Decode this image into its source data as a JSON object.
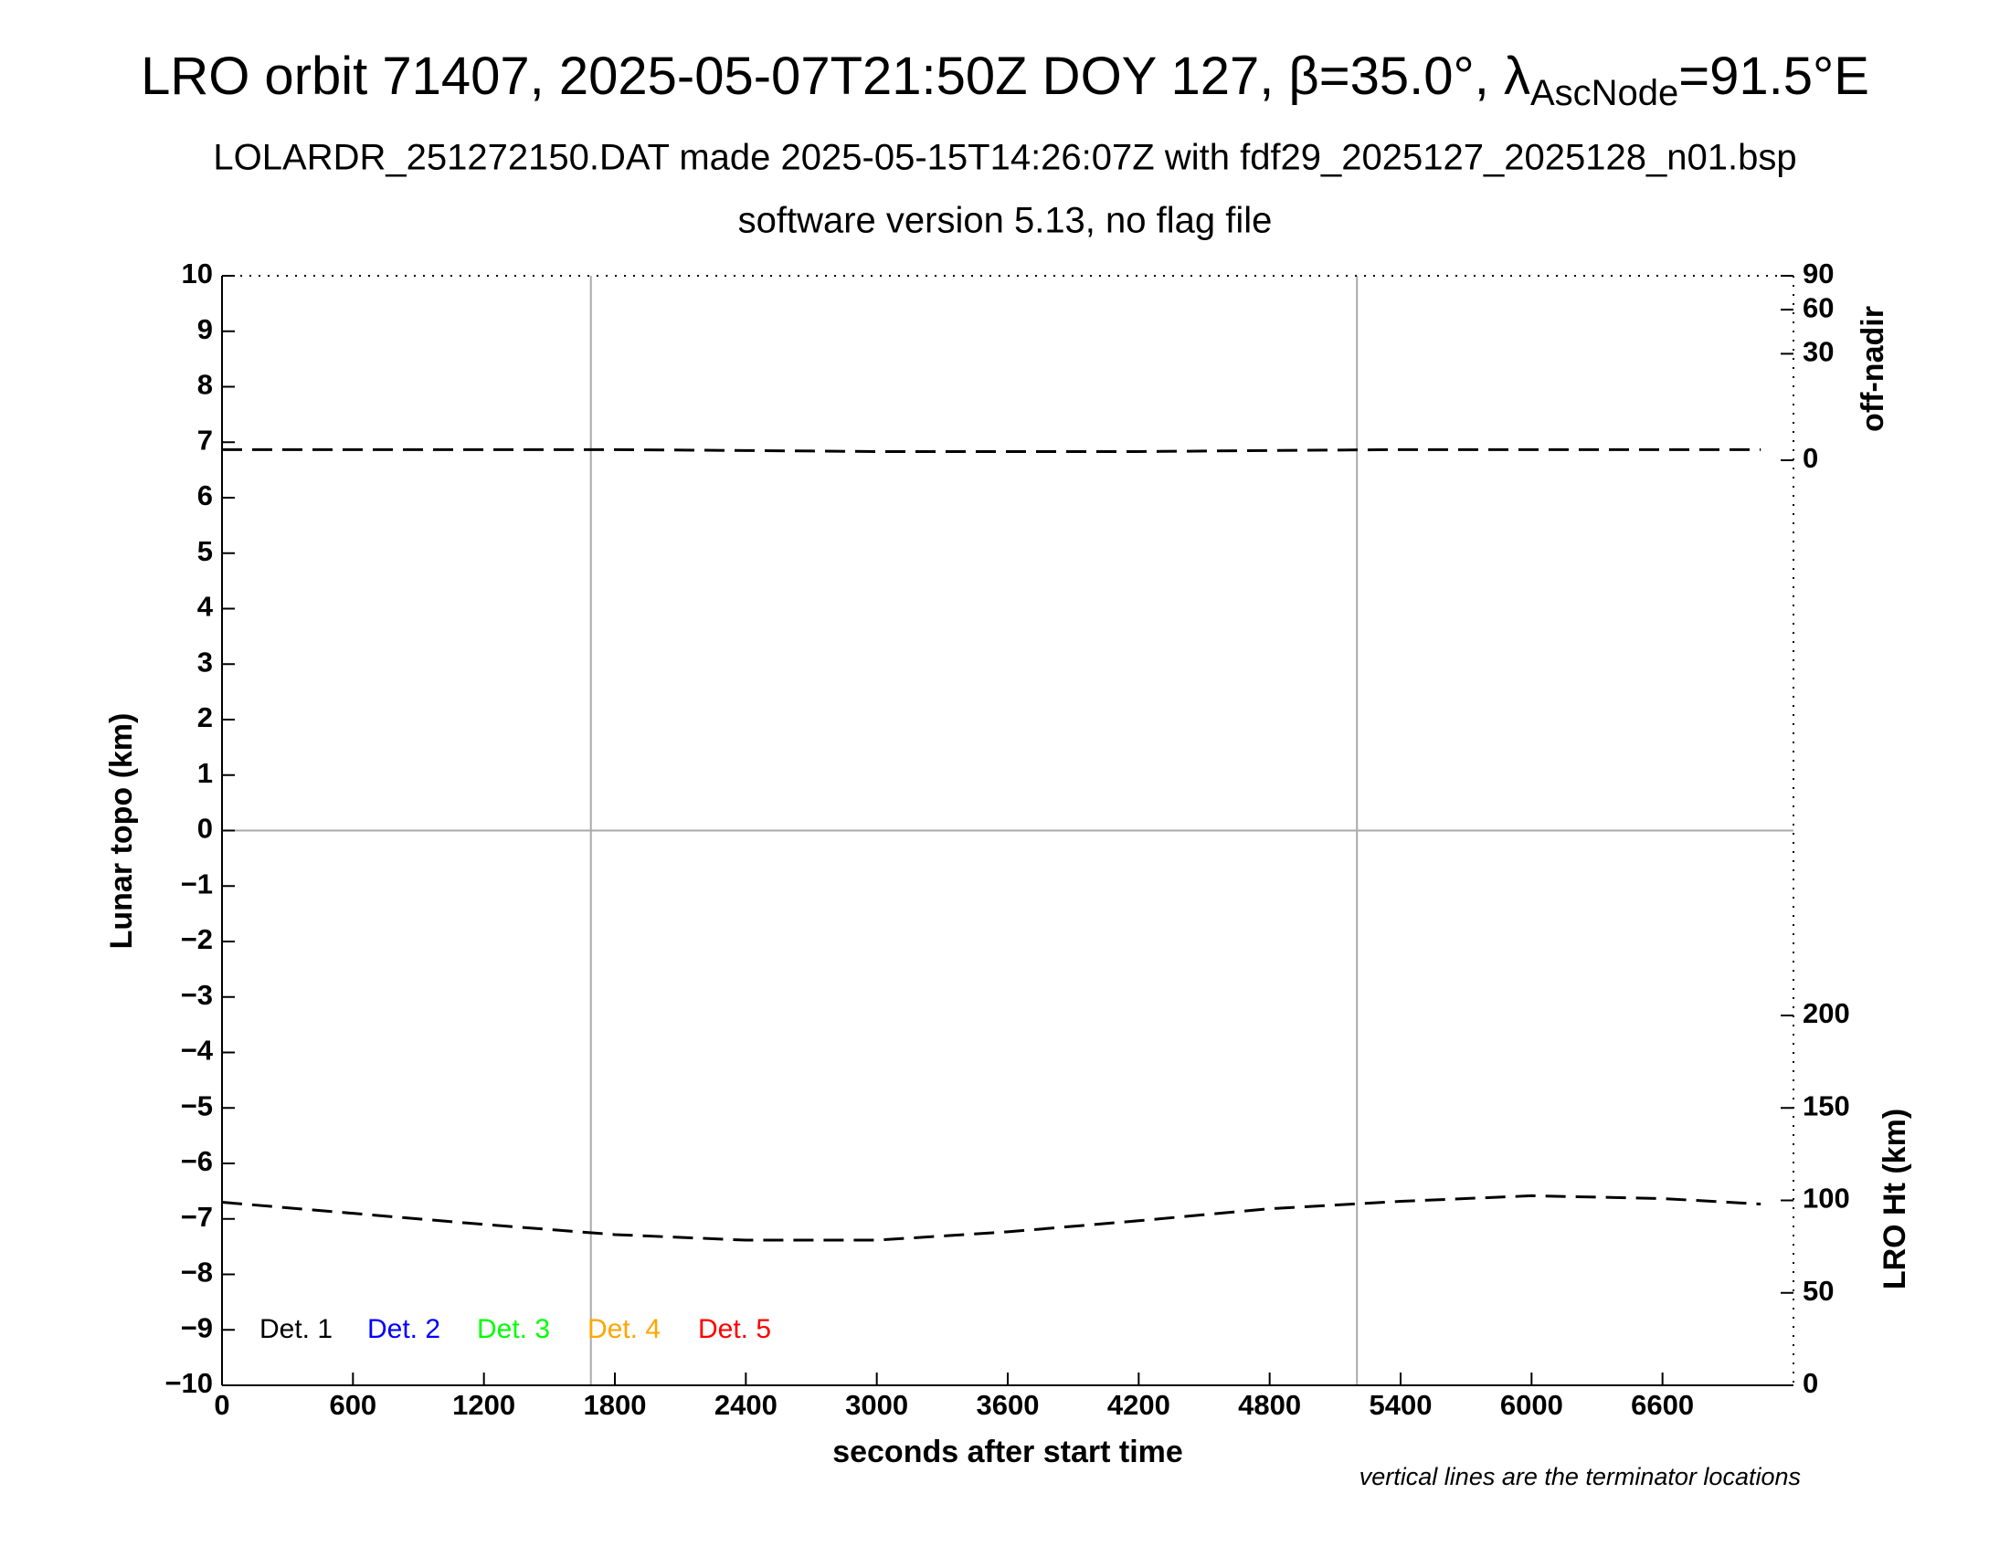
{
  "chart_data": {
    "type": "line",
    "title": {
      "main": "LRO orbit 71407, 2025-05-07T21:50Z DOY 127, β=35.0°, λ",
      "sub": "AscNode",
      "end": "=91.5°E"
    },
    "subtitle": [
      "LOLARDR_251272150.DAT made 2025-05-15T14:26:07Z with fdf29_2025127_2025128_n01.bsp",
      "software version 5.13, no flag file"
    ],
    "xlabel": "seconds after start time",
    "ylabel": "Lunar topo (km)",
    "y2label": "off-nadir",
    "y3label": "LRO Ht (km)",
    "note": "vertical lines are the terminator locations",
    "xlim": [
      0,
      7200
    ],
    "xticks": [
      0,
      600,
      1200,
      1800,
      2400,
      3000,
      3600,
      4200,
      4800,
      5400,
      6000,
      6600
    ],
    "ylim": [
      -10,
      10
    ],
    "yticks": [
      {
        "value": -10,
        "label": "−10"
      },
      {
        "value": -9,
        "label": "−9"
      },
      {
        "value": -8,
        "label": "−8"
      },
      {
        "value": -7,
        "label": "−7"
      },
      {
        "value": -6,
        "label": "−6"
      },
      {
        "value": -5,
        "label": "−5"
      },
      {
        "value": -4,
        "label": "−4"
      },
      {
        "value": -3,
        "label": "−3"
      },
      {
        "value": -2,
        "label": "−2"
      },
      {
        "value": -1,
        "label": "−1"
      },
      0,
      1,
      2,
      3,
      4,
      5,
      6,
      7,
      8,
      9,
      10
    ],
    "y2lim": [
      0,
      90
    ],
    "y2scale": "sqrt",
    "y2ticks": [
      0,
      30,
      60,
      90
    ],
    "y3lim": [
      0,
      300
    ],
    "y3ticks": [
      0,
      50,
      100,
      150,
      200
    ],
    "vlines": [
      1690,
      5200
    ],
    "hlines": [
      0
    ],
    "x": [
      0,
      600,
      1200,
      1800,
      2400,
      3000,
      3600,
      4200,
      4800,
      5400,
      6000,
      6600,
      7050
    ],
    "series": [
      {
        "color": "#000000",
        "axis": "y2",
        "values": [
          0.3,
          0.3,
          0.3,
          0.3,
          0.25,
          0.2,
          0.2,
          0.2,
          0.25,
          0.3,
          0.3,
          0.3,
          0.3
        ]
      },
      {
        "color": "#000000",
        "axis": "y3",
        "values": [
          99,
          93,
          87,
          81.5,
          78.5,
          78.5,
          83,
          89,
          95.5,
          99.5,
          102.5,
          101,
          98
        ]
      }
    ],
    "legend": [
      {
        "name": "Det. 1",
        "color": "#000000"
      },
      {
        "name": "Det. 2",
        "color": "#0000ff"
      },
      {
        "name": "Det. 3",
        "color": "#00ff00"
      },
      {
        "name": "Det. 4",
        "color": "#ffa500"
      },
      {
        "name": "Det. 5",
        "color": "#ff0000"
      }
    ]
  }
}
